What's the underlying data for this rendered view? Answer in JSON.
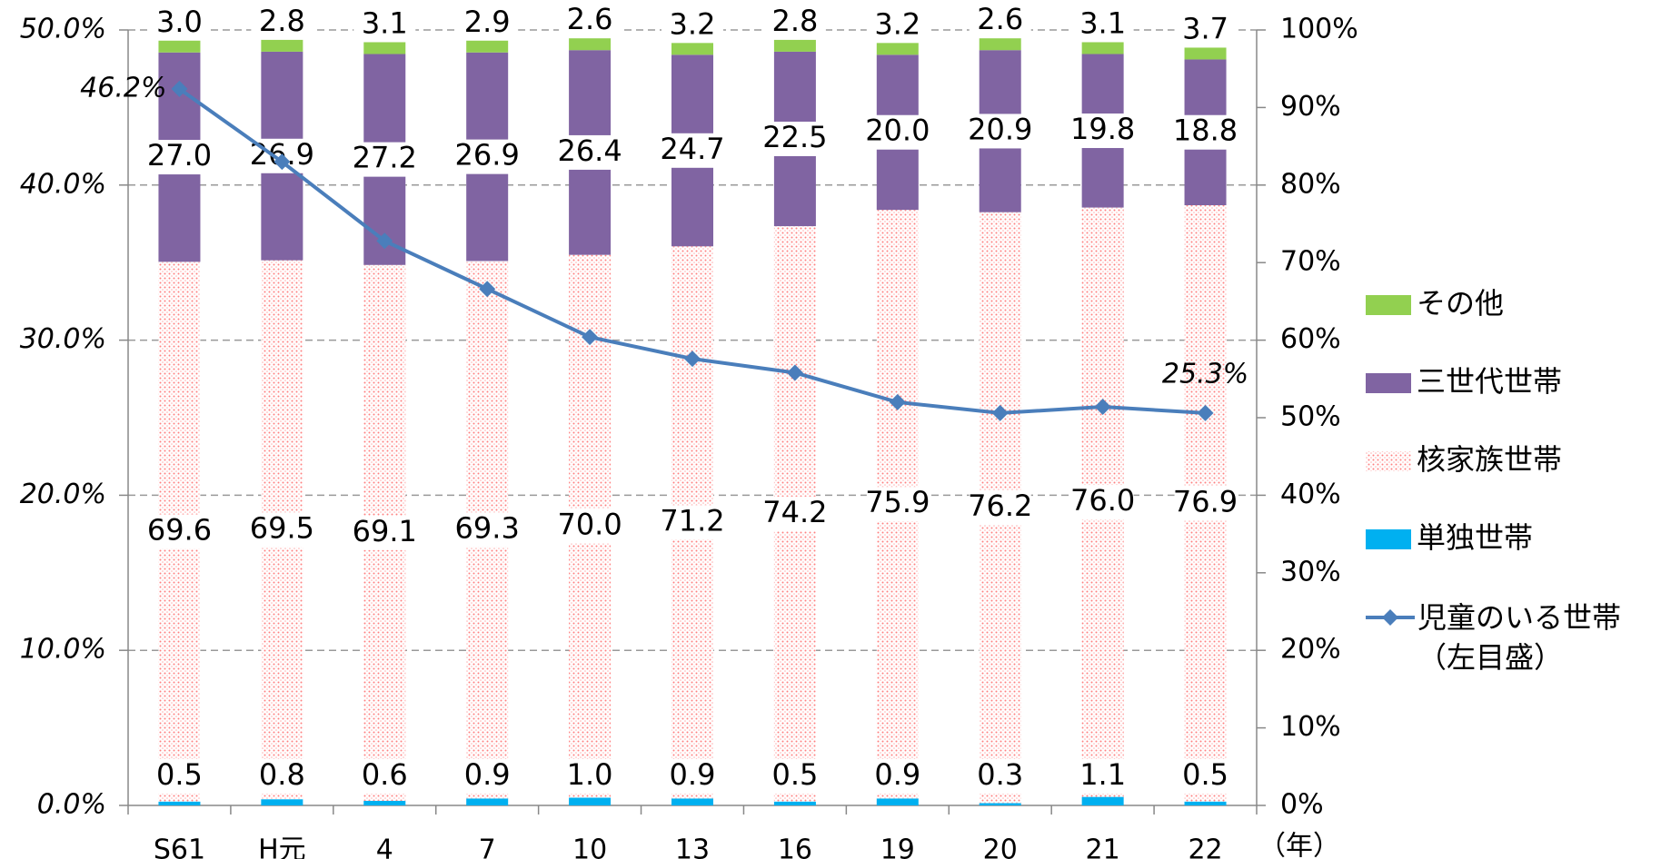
{
  "chart_data": {
    "type": "bar",
    "stacked": true,
    "categories": [
      "S61",
      "H元",
      "4",
      "7",
      "10",
      "13",
      "16",
      "19",
      "20",
      "21",
      "22"
    ],
    "x_unit_label": "（年）",
    "series": [
      {
        "name": "単独世帯",
        "color": "#00b0f0",
        "axis": "y2",
        "values": [
          0.5,
          0.8,
          0.6,
          0.9,
          1.0,
          0.9,
          0.5,
          0.9,
          0.3,
          1.1,
          0.5
        ],
        "value_labels": [
          "0.5",
          "0.8",
          "0.6",
          "0.9",
          "1.0",
          "0.9",
          "0.5",
          "0.9",
          "0.3",
          "1.1",
          "0.5"
        ]
      },
      {
        "name": "核家族世帯",
        "color": "#ff8080",
        "pattern": "dots",
        "axis": "y2",
        "values": [
          69.6,
          69.5,
          69.1,
          69.3,
          70.0,
          71.2,
          74.2,
          75.9,
          76.2,
          76.0,
          76.9
        ],
        "value_labels": [
          "69.6",
          "69.5",
          "69.1",
          "69.3",
          "70.0",
          "71.2",
          "74.2",
          "75.9",
          "76.2",
          "76.0",
          "76.9"
        ]
      },
      {
        "name": "三世代世帯",
        "color": "#8064a2",
        "axis": "y2",
        "values": [
          27.0,
          26.9,
          27.2,
          26.9,
          26.4,
          24.7,
          22.5,
          20.0,
          20.9,
          19.8,
          18.8
        ],
        "value_labels": [
          "27.0",
          "26.9",
          "27.2",
          "26.9",
          "26.4",
          "24.7",
          "22.5",
          "20.0",
          "20.9",
          "19.8",
          "18.8"
        ]
      },
      {
        "name": "その他",
        "color": "#92d050",
        "axis": "y2",
        "values": [
          3.0,
          2.8,
          3.1,
          2.9,
          2.6,
          3.2,
          2.8,
          3.2,
          2.6,
          3.1,
          3.7
        ],
        "value_labels": [
          "3.0",
          "2.8",
          "3.1",
          "2.9",
          "2.6",
          "3.2",
          "2.8",
          "3.2",
          "2.6",
          "3.1",
          "3.7"
        ]
      },
      {
        "name": "児童のいる世帯\n（左目盛）",
        "color": "#4a7ebb",
        "type": "line",
        "marker": "diamond",
        "values": [
          46.2,
          41.5,
          36.4,
          33.3,
          30.2,
          28.8,
          27.9,
          26.0,
          25.3,
          25.7,
          25.3
        ],
        "value_labels": [
          "46.2%",
          null,
          null,
          null,
          null,
          null,
          null,
          null,
          null,
          null,
          "25.3%"
        ]
      }
    ],
    "ylim": [
      0,
      50
    ],
    "yticks": [
      {
        "value": 0,
        "label": "0.0%"
      },
      {
        "value": 10,
        "label": "10.0%"
      },
      {
        "value": 20,
        "label": "20.0%"
      },
      {
        "value": 30,
        "label": "30.0%"
      },
      {
        "value": 40,
        "label": "40.0%"
      },
      {
        "value": 50,
        "label": "50.0%"
      }
    ],
    "y2lim": [
      0,
      100
    ],
    "y2ticks": [
      {
        "value": 0,
        "label": "0%"
      },
      {
        "value": 10,
        "label": "10%"
      },
      {
        "value": 20,
        "label": "20%"
      },
      {
        "value": 30,
        "label": "30%"
      },
      {
        "value": 40,
        "label": "40%"
      },
      {
        "value": 50,
        "label": "50%"
      },
      {
        "value": 60,
        "label": "60%"
      },
      {
        "value": 70,
        "label": "70%"
      },
      {
        "value": 80,
        "label": "80%"
      },
      {
        "value": 90,
        "label": "90%"
      },
      {
        "value": 100,
        "label": "100%"
      }
    ],
    "grid": true,
    "legend": "right"
  }
}
